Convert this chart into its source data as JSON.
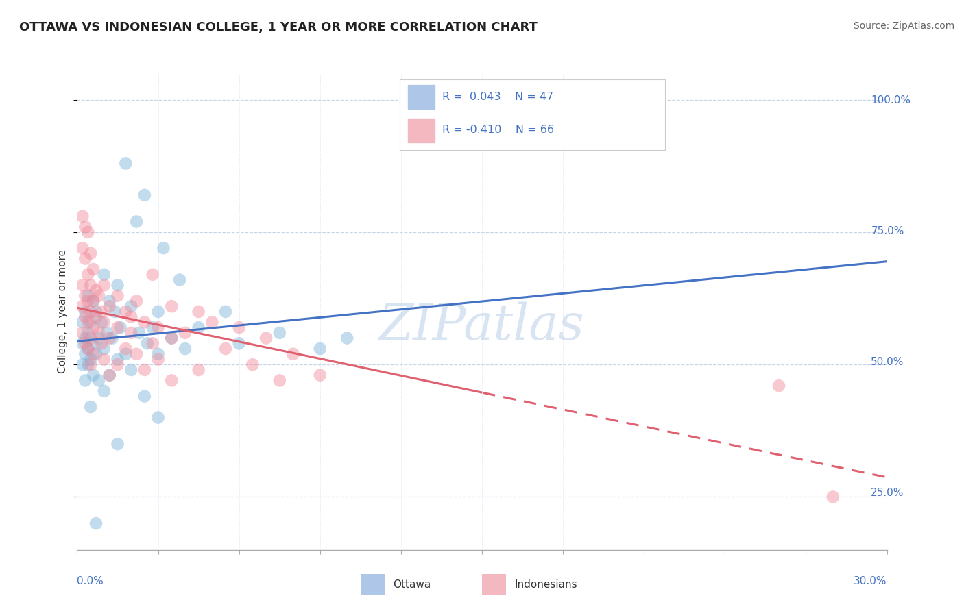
{
  "title": "OTTAWA VS INDONESIAN COLLEGE, 1 YEAR OR MORE CORRELATION CHART",
  "source_text": "Source: ZipAtlas.com",
  "ylabel": "College, 1 year or more",
  "xmin": 0.0,
  "xmax": 30.0,
  "ymin": 15.0,
  "ymax": 105.0,
  "yticks": [
    25.0,
    50.0,
    75.0,
    100.0
  ],
  "watermark": "ZIPatlas",
  "ottawa_color": "#7ab3d9",
  "indonesian_color": "#f08898",
  "ottawa_line_color": "#4472c4",
  "indonesian_line_color": "#e06070",
  "background_color": "#ffffff",
  "grid_color": "#c8d4e8",
  "title_fontsize": 13,
  "axis_label_fontsize": 11,
  "tick_fontsize": 11,
  "source_fontsize": 10,
  "ottawa_points": [
    [
      1.8,
      88
    ],
    [
      2.5,
      82
    ],
    [
      2.2,
      77
    ],
    [
      3.2,
      72
    ],
    [
      1.0,
      67
    ],
    [
      1.5,
      65
    ],
    [
      3.8,
      66
    ],
    [
      0.4,
      63
    ],
    [
      0.6,
      62
    ],
    [
      1.2,
      62
    ],
    [
      2.0,
      61
    ],
    [
      0.3,
      60
    ],
    [
      0.7,
      60
    ],
    [
      1.4,
      60
    ],
    [
      3.0,
      60
    ],
    [
      5.5,
      60
    ],
    [
      0.2,
      58
    ],
    [
      0.5,
      58
    ],
    [
      0.9,
      58
    ],
    [
      1.6,
      57
    ],
    [
      2.8,
      57
    ],
    [
      4.5,
      57
    ],
    [
      0.4,
      56
    ],
    [
      1.1,
      56
    ],
    [
      2.3,
      56
    ],
    [
      7.5,
      56
    ],
    [
      0.3,
      55
    ],
    [
      0.8,
      55
    ],
    [
      1.3,
      55
    ],
    [
      3.5,
      55
    ],
    [
      10.0,
      55
    ],
    [
      0.2,
      54
    ],
    [
      0.6,
      54
    ],
    [
      2.6,
      54
    ],
    [
      6.0,
      54
    ],
    [
      0.4,
      53
    ],
    [
      1.0,
      53
    ],
    [
      4.0,
      53
    ],
    [
      9.0,
      53
    ],
    [
      0.3,
      52
    ],
    [
      0.7,
      52
    ],
    [
      1.8,
      52
    ],
    [
      3.0,
      52
    ],
    [
      0.5,
      51
    ],
    [
      1.5,
      51
    ],
    [
      0.2,
      50
    ],
    [
      0.4,
      50
    ],
    [
      2.0,
      49
    ],
    [
      0.6,
      48
    ],
    [
      1.2,
      48
    ],
    [
      0.3,
      47
    ],
    [
      0.8,
      47
    ],
    [
      1.0,
      45
    ],
    [
      2.5,
      44
    ],
    [
      0.5,
      42
    ],
    [
      3.0,
      40
    ],
    [
      1.5,
      35
    ],
    [
      0.7,
      20
    ]
  ],
  "indonesian_points": [
    [
      0.2,
      78
    ],
    [
      0.3,
      76
    ],
    [
      0.4,
      75
    ],
    [
      0.2,
      72
    ],
    [
      0.5,
      71
    ],
    [
      0.3,
      70
    ],
    [
      0.6,
      68
    ],
    [
      0.4,
      67
    ],
    [
      2.8,
      67
    ],
    [
      0.2,
      65
    ],
    [
      0.5,
      65
    ],
    [
      1.0,
      65
    ],
    [
      0.7,
      64
    ],
    [
      0.3,
      63
    ],
    [
      0.8,
      63
    ],
    [
      1.5,
      63
    ],
    [
      0.4,
      62
    ],
    [
      0.6,
      62
    ],
    [
      2.2,
      62
    ],
    [
      0.2,
      61
    ],
    [
      1.2,
      61
    ],
    [
      3.5,
      61
    ],
    [
      0.5,
      60
    ],
    [
      0.9,
      60
    ],
    [
      1.8,
      60
    ],
    [
      4.5,
      60
    ],
    [
      0.3,
      59
    ],
    [
      0.7,
      59
    ],
    [
      2.0,
      59
    ],
    [
      0.4,
      58
    ],
    [
      1.0,
      58
    ],
    [
      2.5,
      58
    ],
    [
      5.0,
      58
    ],
    [
      0.6,
      57
    ],
    [
      1.5,
      57
    ],
    [
      3.0,
      57
    ],
    [
      6.0,
      57
    ],
    [
      0.2,
      56
    ],
    [
      0.8,
      56
    ],
    [
      2.0,
      56
    ],
    [
      4.0,
      56
    ],
    [
      0.5,
      55
    ],
    [
      1.2,
      55
    ],
    [
      3.5,
      55
    ],
    [
      7.0,
      55
    ],
    [
      0.3,
      54
    ],
    [
      0.9,
      54
    ],
    [
      2.8,
      54
    ],
    [
      0.4,
      53
    ],
    [
      1.8,
      53
    ],
    [
      5.5,
      53
    ],
    [
      0.6,
      52
    ],
    [
      2.2,
      52
    ],
    [
      8.0,
      52
    ],
    [
      1.0,
      51
    ],
    [
      3.0,
      51
    ],
    [
      0.5,
      50
    ],
    [
      1.5,
      50
    ],
    [
      6.5,
      50
    ],
    [
      2.5,
      49
    ],
    [
      4.5,
      49
    ],
    [
      1.2,
      48
    ],
    [
      9.0,
      48
    ],
    [
      3.5,
      47
    ],
    [
      7.5,
      47
    ],
    [
      26.0,
      46
    ],
    [
      28.0,
      25
    ]
  ]
}
